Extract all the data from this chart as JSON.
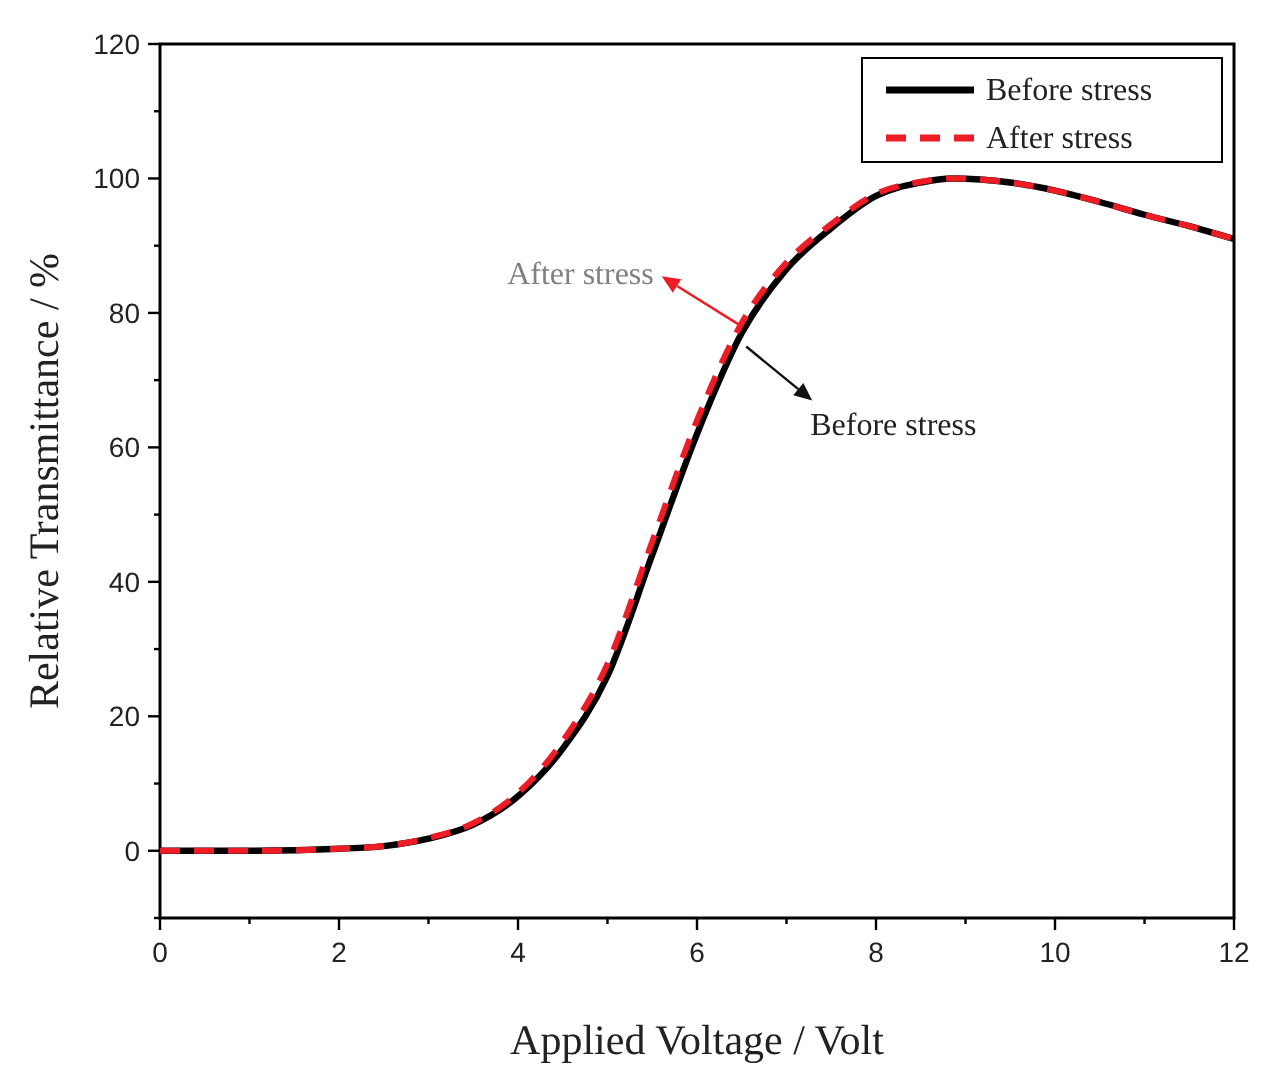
{
  "chart_data": {
    "type": "line",
    "xlabel": "Applied Voltage / Volt",
    "ylabel": "Relative Transmittance / %",
    "x": [
      0,
      1,
      2,
      2.5,
      3,
      3.5,
      4,
      4.5,
      5,
      5.5,
      6,
      6.5,
      7,
      7.5,
      8,
      8.5,
      8.85,
      9.5,
      10,
      10.5,
      11,
      11.5,
      12
    ],
    "series": [
      {
        "name": "Before stress",
        "color": "#000000",
        "line_style": "solid",
        "values": [
          0,
          0,
          0.3,
          0.7,
          1.8,
          3.9,
          8.1,
          15.2,
          26,
          44,
          62,
          77,
          86.5,
          92.6,
          97.4,
          99.4,
          100,
          99.4,
          98.2,
          96.5,
          94.6,
          92.9,
          91
        ]
      },
      {
        "name": "After stress",
        "color": "#ee1c25",
        "line_style": "dashed",
        "values": [
          0,
          0,
          0.3,
          0.7,
          1.9,
          4.1,
          8.6,
          16.3,
          27.8,
          46,
          64,
          78.5,
          87.5,
          93.2,
          97.7,
          99.5,
          100,
          99.4,
          98.2,
          96.5,
          94.6,
          92.9,
          91
        ]
      }
    ],
    "xlim": [
      0,
      12
    ],
    "xticks": [
      0,
      {
        "value": 1,
        "label": null
      },
      2,
      {
        "value": 3,
        "label": null
      },
      4,
      {
        "value": 5,
        "label": null
      },
      6,
      {
        "value": 7,
        "label": null
      },
      8,
      {
        "value": 9,
        "label": null
      },
      10,
      {
        "value": 11,
        "label": null
      },
      12
    ],
    "ylim": [
      -10,
      120
    ],
    "yticks": [
      {
        "value": -10,
        "label": null
      },
      0,
      {
        "value": 10,
        "label": null
      },
      20,
      {
        "value": 30,
        "label": null
      },
      40,
      {
        "value": 50,
        "label": null
      },
      60,
      {
        "value": 70,
        "label": null
      },
      80,
      {
        "value": 90,
        "label": null
      },
      100,
      {
        "value": 110,
        "label": null
      },
      120
    ],
    "legend": "top right",
    "grid": false,
    "marker": "none",
    "annotations": [
      {
        "text": "After stress",
        "x": 6.5,
        "y": 78
      },
      {
        "text": "Before stress",
        "x": 6.55,
        "y": 75
      }
    ]
  }
}
